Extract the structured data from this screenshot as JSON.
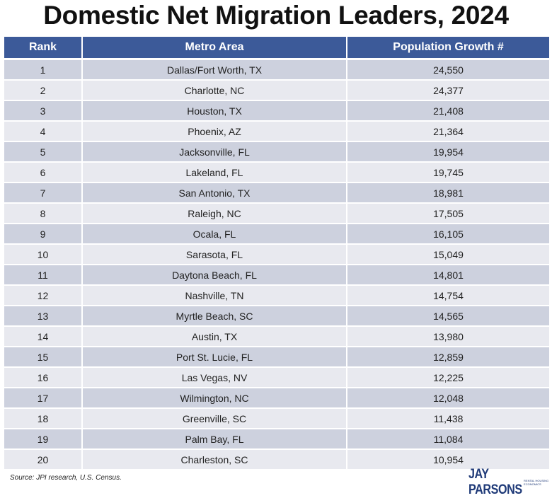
{
  "title": "Domestic Net Migration Leaders, 2024",
  "chart_data": {
    "type": "table",
    "title": "Domestic Net Migration Leaders, 2024",
    "columns": [
      "Rank",
      "Metro Area",
      "Population Growth #"
    ],
    "rows": [
      [
        "1",
        "Dallas/Fort Worth, TX",
        "24,550"
      ],
      [
        "2",
        "Charlotte, NC",
        "24,377"
      ],
      [
        "3",
        "Houston, TX",
        "21,408"
      ],
      [
        "4",
        "Phoenix, AZ",
        "21,364"
      ],
      [
        "5",
        "Jacksonville, FL",
        "19,954"
      ],
      [
        "6",
        "Lakeland, FL",
        "19,745"
      ],
      [
        "7",
        "San Antonio, TX",
        "18,981"
      ],
      [
        "8",
        "Raleigh, NC",
        "17,505"
      ],
      [
        "9",
        "Ocala, FL",
        "16,105"
      ],
      [
        "10",
        "Sarasota, FL",
        "15,049"
      ],
      [
        "11",
        "Daytona Beach, FL",
        "14,801"
      ],
      [
        "12",
        "Nashville, TN",
        "14,754"
      ],
      [
        "13",
        "Myrtle Beach, SC",
        "14,565"
      ],
      [
        "14",
        "Austin, TX",
        "13,980"
      ],
      [
        "15",
        "Port St. Lucie, FL",
        "12,859"
      ],
      [
        "16",
        "Las Vegas, NV",
        "12,225"
      ],
      [
        "17",
        "Wilmington, NC",
        "12,048"
      ],
      [
        "18",
        "Greenville, SC",
        "11,438"
      ],
      [
        "19",
        "Palm Bay, FL",
        "11,084"
      ],
      [
        "20",
        "Charleston, SC",
        "10,954"
      ]
    ]
  },
  "source": "Source: JPI research, U.S. Census.",
  "logo": {
    "main": "JAY PARSONS",
    "sub": "RENTAL HOUSING ECONOMICS"
  },
  "colors": {
    "header": "#3c5a99",
    "row_odd": "#cdd1de",
    "row_even": "#e8e9ef"
  }
}
